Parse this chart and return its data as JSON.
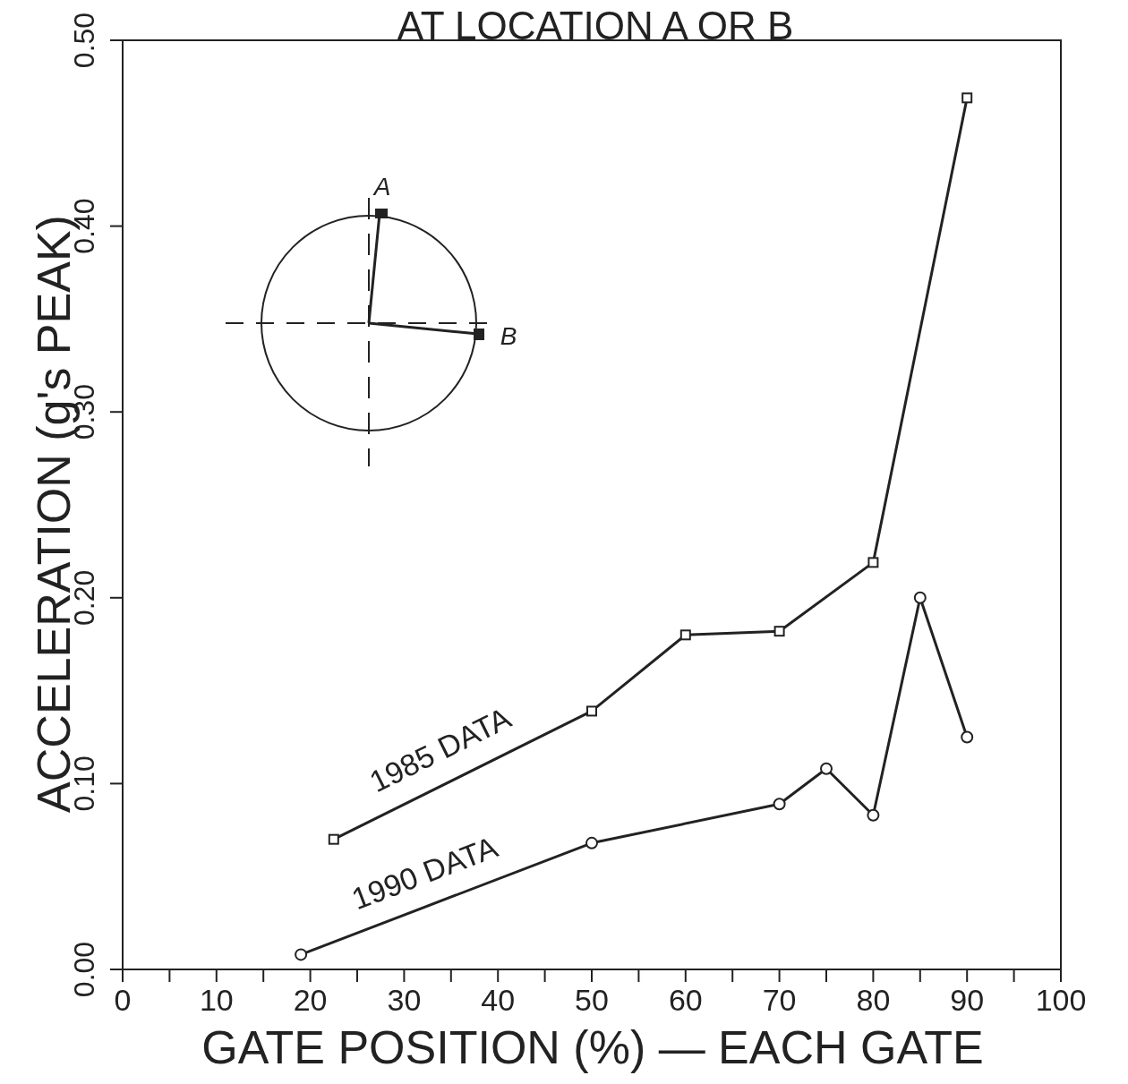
{
  "chart_data": {
    "type": "line",
    "title": "AT LOCATION A OR B",
    "xlabel": "GATE POSITION (%) — EACH GATE",
    "ylabel": "ACCELERATION (g's PEAK)",
    "series": [
      {
        "name": "1985 DATA",
        "color": "#222222",
        "marker": "square",
        "x": [
          22.5,
          50,
          60,
          70,
          80,
          90
        ],
        "values": [
          0.07,
          0.139,
          0.18,
          0.182,
          0.219,
          0.469
        ]
      },
      {
        "name": "1990 DATA",
        "color": "#222222",
        "marker": "circle",
        "x": [
          19,
          50,
          70,
          75,
          80,
          85,
          90
        ],
        "values": [
          0.008,
          0.068,
          0.089,
          0.108,
          0.083,
          0.2,
          0.125
        ]
      }
    ],
    "xlim": [
      0,
      100
    ],
    "xticks": [
      0,
      {
        "value": 5,
        "label": null
      },
      10,
      {
        "value": 15,
        "label": null
      },
      20,
      {
        "value": 25,
        "label": null
      },
      30,
      {
        "value": 35,
        "label": null
      },
      40,
      {
        "value": 45,
        "label": null
      },
      50,
      {
        "value": 55,
        "label": null
      },
      60,
      {
        "value": 65,
        "label": null
      },
      70,
      {
        "value": 75,
        "label": null
      },
      80,
      {
        "value": 85,
        "label": null
      },
      90,
      {
        "value": 95,
        "label": null
      },
      100
    ],
    "ylim": [
      0,
      0.5
    ],
    "yticks": [
      {
        "value": 0,
        "label": "0.00"
      },
      {
        "value": 0.1,
        "label": "0.10"
      },
      {
        "value": 0.2,
        "label": "0.20"
      },
      {
        "value": 0.3,
        "label": "0.30"
      },
      {
        "value": 0.4,
        "label": "0.40"
      },
      {
        "value": 0.5,
        "label": "0.50"
      }
    ],
    "annotations": [
      "A",
      "B"
    ],
    "grid": false,
    "legend": false,
    "line_style": "solid"
  }
}
